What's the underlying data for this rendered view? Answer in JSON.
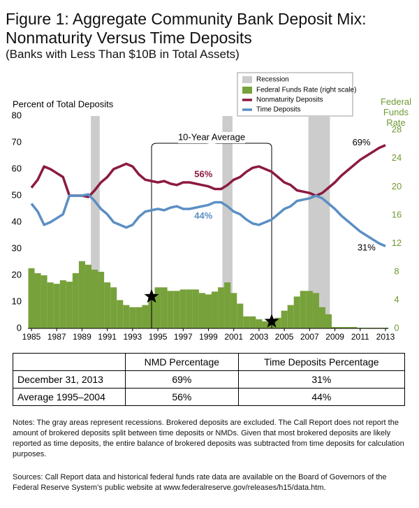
{
  "chart_data": {
    "type": "line",
    "title": "Figure 1: Aggregate Community Bank Deposit Mix:",
    "title_line2": "Nonmaturity Versus Time Deposits",
    "subtitle": "(Banks with Less Than $10B in Total Assets)",
    "ylabel": "Percent of Total Deposits",
    "y2label": "Federal Funds Rate",
    "recession_label": "Recession",
    "recessions": [
      [
        1989.7,
        1990.4
      ],
      [
        2000.1,
        2000.9
      ],
      [
        2006.9,
        2008.6
      ]
    ],
    "recession_color": "#cccccc",
    "x": [
      1985,
      1985.5,
      1986,
      1986.5,
      1987,
      1987.5,
      1988,
      1988.5,
      1989,
      1989.5,
      1990,
      1990.5,
      1991,
      1991.5,
      1992,
      1992.5,
      1993,
      1993.5,
      1994,
      1994.5,
      1995,
      1995.5,
      1996,
      1996.5,
      1997,
      1997.5,
      1998,
      1998.5,
      1999,
      1999.5,
      2000,
      2000.5,
      2001,
      2001.5,
      2002,
      2002.5,
      2003,
      2003.5,
      2004,
      2004.5,
      2005,
      2005.5,
      2006,
      2006.5,
      2007,
      2007.5,
      2008,
      2008.5,
      2009,
      2009.5,
      2010,
      2010.5,
      2011,
      2011.5,
      2012,
      2012.5,
      2013
    ],
    "series": [
      {
        "name": "Nonmaturity Deposits",
        "color": "#8c1a3f",
        "type": "line",
        "values": [
          53,
          56,
          61,
          60,
          58.5,
          57,
          50,
          50,
          50,
          49.5,
          52,
          55,
          57,
          60,
          61,
          62,
          61,
          58,
          56,
          55.5,
          55,
          55.5,
          54.5,
          54,
          55,
          55,
          54.5,
          54,
          53.5,
          52.5,
          52.5,
          54,
          56,
          57,
          59,
          60.5,
          61,
          60,
          59,
          57,
          55,
          54,
          52,
          51.5,
          51,
          50,
          51,
          53,
          55,
          57.5,
          59.5,
          61.5,
          63.5,
          65,
          66.5,
          68,
          69
        ]
      },
      {
        "name": "Time Deposits",
        "color": "#5b8fc4",
        "type": "line",
        "values": [
          47,
          44,
          39,
          40,
          41.5,
          43,
          50,
          50,
          50,
          50.5,
          48,
          45,
          43,
          40,
          39,
          38,
          39,
          42,
          44,
          44.5,
          45,
          44.5,
          45.5,
          46,
          45,
          45,
          45.5,
          46,
          46.5,
          47.5,
          47.5,
          46,
          44,
          43,
          41,
          39.5,
          39,
          40,
          41,
          43,
          45,
          46,
          48,
          48.5,
          49,
          50,
          49,
          47,
          45,
          42.5,
          40.5,
          38.5,
          36.5,
          35,
          33.5,
          32,
          31
        ]
      },
      {
        "name": "Federal Funds Rate (right scale)",
        "color": "#77a13a",
        "type": "bar",
        "axis": "y2",
        "values": [
          8.5,
          7.8,
          7.5,
          6.5,
          6.3,
          6.8,
          6.6,
          7.8,
          9.5,
          9.0,
          8.3,
          8.0,
          6.5,
          5.8,
          4.0,
          3.3,
          3.0,
          3.0,
          3.3,
          4.5,
          5.8,
          5.8,
          5.3,
          5.3,
          5.5,
          5.5,
          5.5,
          5.0,
          4.8,
          5.2,
          5.8,
          6.5,
          5.0,
          3.5,
          1.7,
          1.7,
          1.3,
          1.0,
          1.0,
          1.5,
          2.5,
          3.3,
          4.5,
          5.3,
          5.3,
          5.0,
          3.0,
          2.0,
          0.2,
          0.2,
          0.2,
          0.2,
          0.1,
          0.1,
          0.1,
          0.1,
          0.1
        ]
      }
    ],
    "xlim": [
      1985,
      2013
    ],
    "xticks": [
      1985,
      1987,
      1989,
      1991,
      1993,
      1995,
      1997,
      1999,
      2001,
      2003,
      2005,
      2007,
      2009,
      2011,
      2013
    ],
    "ylim": [
      0,
      80
    ],
    "yticks": [
      0,
      10,
      20,
      30,
      40,
      50,
      60,
      70,
      80
    ],
    "y2lim": [
      0,
      30
    ],
    "y2ticks": [
      0,
      4,
      8,
      12,
      16,
      20,
      24,
      28
    ],
    "average_period": {
      "label": "10-Year Average",
      "start": 1994.5,
      "end": 2004
    },
    "annotations": [
      {
        "label": "56%",
        "value": 56,
        "x": 1998.6,
        "series": 0
      },
      {
        "label": "44%",
        "value": 44,
        "x": 1998.6,
        "series": 1
      },
      {
        "label": "69%",
        "value": 69,
        "x": 2011.1,
        "series": 0
      },
      {
        "label": "31%",
        "value": 31,
        "x": 2011.5,
        "series": 1
      }
    ]
  },
  "table": {
    "columns": [
      "NMD Percentage",
      "Time Deposits Percentage"
    ],
    "rows": [
      [
        "December 31, 2013",
        "69%",
        "31%"
      ],
      [
        "Average 1995–2004",
        "56%",
        "44%"
      ]
    ]
  },
  "notes": "Notes: The gray areas represent recessions. Brokered deposits are excluded. The Call Report does not report the amount of brokered deposits split between time deposits or NMDs. Given that most brokered deposits are likely reported as time deposits, the entire balance of brokered deposits was subtracted from time deposits for calculation purposes.",
  "sources": "Sources: Call Report data and historical federal funds rate data are available on the Board of Governors of the Federal Reserve System’s public website at www.federalreserve.gov/releases/h15/data.htm."
}
